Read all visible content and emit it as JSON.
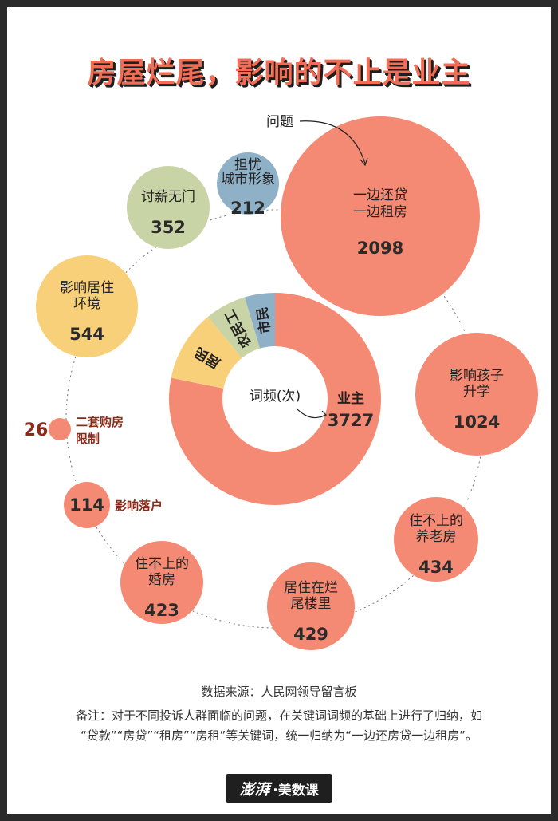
{
  "title": "房屋烂尾，影响的不止是业主",
  "chart_data": [
    {
      "type": "pie",
      "donut": true,
      "center_label": "词频(次)",
      "slices": [
        {
          "name": "业主",
          "value": 3727,
          "color": "#f48a73"
        },
        {
          "name": "居民",
          "value": 520,
          "color": "#f9d07a"
        },
        {
          "name": "农民工",
          "value": 300,
          "color": "#c9d4a6"
        },
        {
          "name": "市民",
          "value": 220,
          "color": "#8fb1c8"
        }
      ],
      "callout": {
        "label": "业主",
        "value": "3727"
      }
    },
    {
      "type": "bubble",
      "annotation": "问题",
      "bubbles": [
        {
          "lines": [
            "一边还贷",
            "一边租房"
          ],
          "value": 2098,
          "color": "#f48a73"
        },
        {
          "lines": [
            "影响孩子",
            "升学"
          ],
          "value": 1024,
          "color": "#f48a73"
        },
        {
          "lines": [
            "住不上的",
            "养老房"
          ],
          "value": 434,
          "color": "#f48a73"
        },
        {
          "lines": [
            "居住在烂",
            "尾楼里"
          ],
          "value": 429,
          "color": "#f48a73"
        },
        {
          "lines": [
            "住不上的",
            "婚房"
          ],
          "value": 423,
          "color": "#f48a73"
        },
        {
          "lines": [
            "影响落户"
          ],
          "value": 114,
          "color": "#f48a73",
          "side_label": true
        },
        {
          "lines": [
            "二套购房",
            "限制"
          ],
          "value": 26,
          "color": "#f48a73",
          "side_label": true
        },
        {
          "lines": [
            "影响居住",
            "环境"
          ],
          "value": 544,
          "color": "#f9d07a"
        },
        {
          "lines": [
            "讨薪无门"
          ],
          "value": 352,
          "color": "#c9d4a6"
        },
        {
          "lines": [
            "担忧",
            "城市形象"
          ],
          "value": 212,
          "color": "#8fb1c8"
        }
      ]
    }
  ],
  "footer": {
    "source": "数据来源：人民网领导留言板",
    "note_line1": "备注：对于不同投诉人群面临的问题，在关键词词频的基础上进行了归纳，如",
    "note_line2": "“贷款”“房贷”“租房”“房租”等关键词，统一归纳为“一边还房贷一边租房”。"
  },
  "brand": {
    "logo": "澎湃",
    "name": "·美数课"
  }
}
